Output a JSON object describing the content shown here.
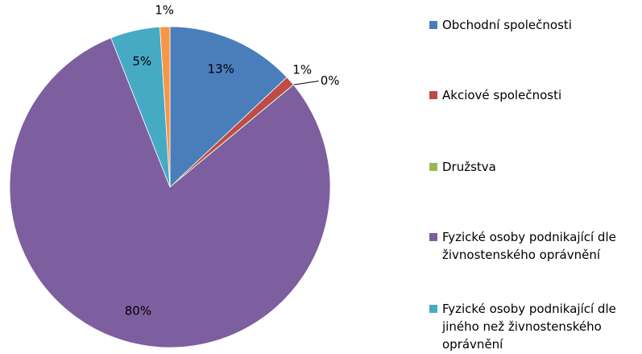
{
  "chart_data": {
    "type": "pie",
    "categories": [
      "Obchodní společnosti",
      "Akciové společnosti",
      "Družstva",
      "Fyzické osoby podnikající dle živnostenského oprávnění",
      "Fyzické osoby podnikající dle jiného než živnostenského oprávnění",
      null
    ],
    "values": [
      13,
      1,
      0,
      80,
      5,
      1
    ],
    "value_labels": [
      "13%",
      "1%",
      "0%",
      "80%",
      "5%",
      "1%"
    ],
    "colors": [
      "#4a7ebb",
      "#be4b48",
      "#98b954",
      "#7d5fa0",
      "#46aac5",
      "#f79646"
    ],
    "legend": "right"
  }
}
